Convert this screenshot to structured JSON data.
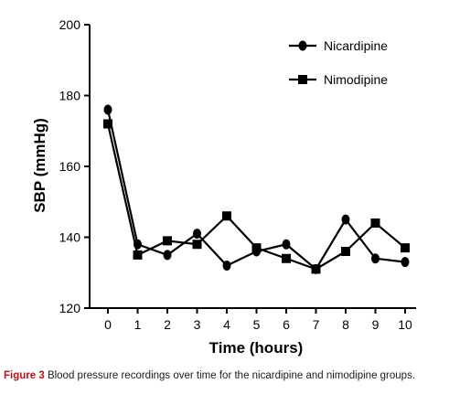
{
  "chart_data": {
    "type": "line",
    "title": "",
    "xlabel": "Time (hours)",
    "ylabel": "SBP (mmHg)",
    "x": [
      0,
      1,
      2,
      3,
      4,
      5,
      6,
      7,
      8,
      9,
      10
    ],
    "xlim": [
      0,
      10
    ],
    "ylim": [
      120,
      200
    ],
    "y_ticks": [
      120,
      140,
      160,
      180,
      200
    ],
    "x_ticks": [
      0,
      1,
      2,
      3,
      4,
      5,
      6,
      7,
      8,
      9,
      10
    ],
    "grid": false,
    "legend_position": "top-right",
    "series": [
      {
        "name": "Nicardipine",
        "marker": "circle",
        "color": "#000000",
        "values": [
          176,
          138,
          135,
          141,
          132,
          136,
          138,
          131,
          145,
          134,
          133
        ]
      },
      {
        "name": "Nimodipine",
        "marker": "square",
        "color": "#000000",
        "values": [
          172,
          135,
          139,
          138,
          146,
          137,
          134,
          131,
          136,
          144,
          137
        ]
      }
    ]
  },
  "caption": {
    "label": "Figure 3",
    "text": "Blood pressure recordings over time for the nicardipine and nimodipine groups."
  }
}
